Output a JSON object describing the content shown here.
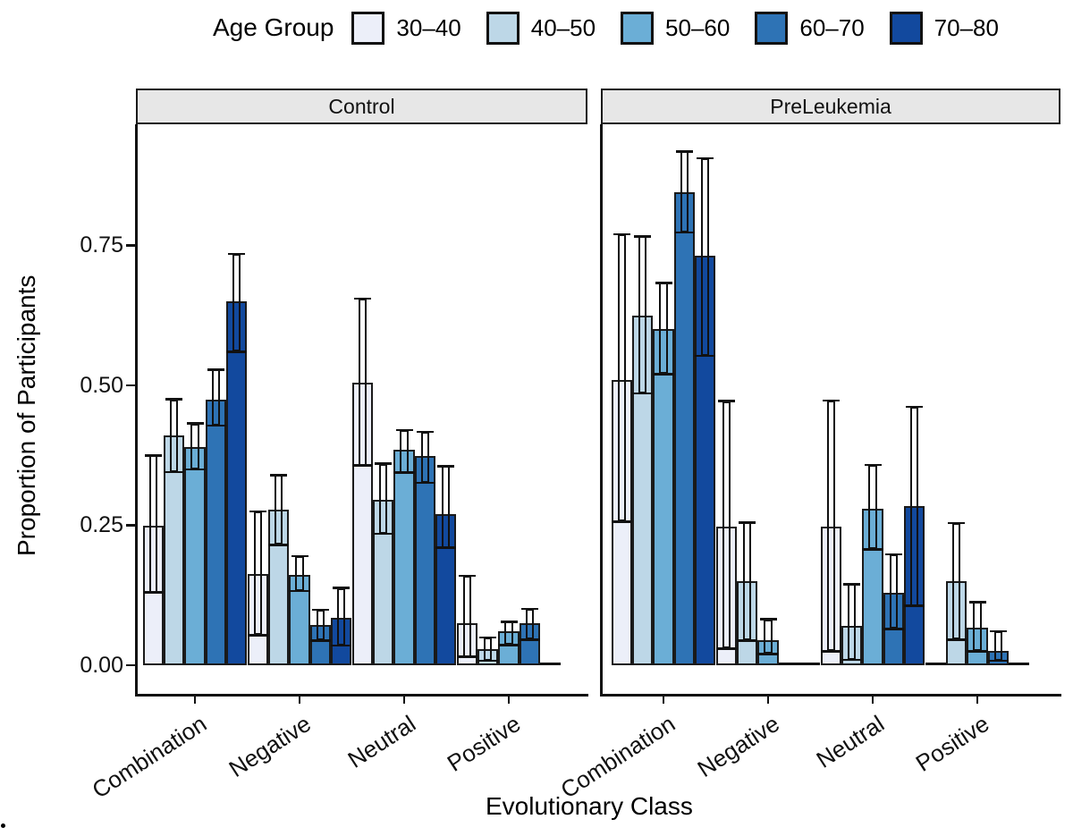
{
  "legend": {
    "title": "Age Group",
    "items": [
      {
        "label": "30–40",
        "color": "#eceff9"
      },
      {
        "label": "40–50",
        "color": "#bdd7e7"
      },
      {
        "label": "50–60",
        "color": "#6baed6"
      },
      {
        "label": "60–70",
        "color": "#2e73b5"
      },
      {
        "label": "70–80",
        "color": "#12499e"
      }
    ]
  },
  "facet_strips": [
    "Control",
    "PreLeukemia"
  ],
  "y_axis": {
    "title": "Proportion of Participants",
    "tick_labels": [
      "0.00",
      "0.25",
      "0.50",
      "0.75"
    ]
  },
  "x_axis": {
    "title": "Evolutionary Class"
  },
  "chart_data": {
    "type": "bar",
    "subtype": "dodged-faceted-with-errorbars",
    "title": "",
    "xlabel": "Evolutionary Class",
    "ylabel": "Proportion of Participants",
    "ylim": [
      0,
      0.95
    ],
    "yticks": [
      0,
      0.25,
      0.5,
      0.75
    ],
    "ytick_labels": [
      "0.00",
      "0.25",
      "0.50",
      "0.75"
    ],
    "grid": false,
    "legend_position": "top",
    "legend_title": "Age Group",
    "categories": [
      "Combination",
      "Negative",
      "Neutral",
      "Positive"
    ],
    "age_groups": [
      "30–40",
      "40–50",
      "50–60",
      "60–70",
      "70–80"
    ],
    "colors": [
      "#eceff9",
      "#bdd7e7",
      "#6baed6",
      "#2e73b5",
      "#12499e"
    ],
    "facets": [
      {
        "label": "Control",
        "groups": [
          {
            "category": "Combination",
            "bars": [
              {
                "age": "30–40",
                "value": 0.25,
                "ci_low": 0.13,
                "ci_high": 0.375
              },
              {
                "age": "40–50",
                "value": 0.41,
                "ci_low": 0.345,
                "ci_high": 0.475
              },
              {
                "age": "50–60",
                "value": 0.39,
                "ci_low": 0.35,
                "ci_high": 0.432
              },
              {
                "age": "60–70",
                "value": 0.475,
                "ci_low": 0.428,
                "ci_high": 0.528
              },
              {
                "age": "70–80",
                "value": 0.65,
                "ci_low": 0.56,
                "ci_high": 0.735
              }
            ]
          },
          {
            "category": "Negative",
            "bars": [
              {
                "age": "30–40",
                "value": 0.163,
                "ci_low": 0.054,
                "ci_high": 0.275
              },
              {
                "age": "40–50",
                "value": 0.278,
                "ci_low": 0.215,
                "ci_high": 0.34
              },
              {
                "age": "50–60",
                "value": 0.162,
                "ci_low": 0.133,
                "ci_high": 0.195
              },
              {
                "age": "60–70",
                "value": 0.072,
                "ci_low": 0.044,
                "ci_high": 0.099
              },
              {
                "age": "70–80",
                "value": 0.085,
                "ci_low": 0.035,
                "ci_high": 0.138
              }
            ]
          },
          {
            "category": "Neutral",
            "bars": [
              {
                "age": "30–40",
                "value": 0.505,
                "ci_low": 0.357,
                "ci_high": 0.655
              },
              {
                "age": "40–50",
                "value": 0.295,
                "ci_low": 0.235,
                "ci_high": 0.36
              },
              {
                "age": "50–60",
                "value": 0.385,
                "ci_low": 0.344,
                "ci_high": 0.42
              },
              {
                "age": "60–70",
                "value": 0.374,
                "ci_low": 0.326,
                "ci_high": 0.417
              },
              {
                "age": "70–80",
                "value": 0.27,
                "ci_low": 0.21,
                "ci_high": 0.356
              }
            ]
          },
          {
            "category": "Positive",
            "bars": [
              {
                "age": "30–40",
                "value": 0.075,
                "ci_low": 0.015,
                "ci_high": 0.16
              },
              {
                "age": "40–50",
                "value": 0.028,
                "ci_low": 0.008,
                "ci_high": 0.05
              },
              {
                "age": "50–60",
                "value": 0.06,
                "ci_low": 0.036,
                "ci_high": 0.078
              },
              {
                "age": "60–70",
                "value": 0.075,
                "ci_low": 0.046,
                "ci_high": 0.101
              },
              {
                "age": "70–80",
                "value": 0,
                "ci_low": null,
                "ci_high": null
              }
            ]
          }
        ]
      },
      {
        "label": "PreLeukemia",
        "groups": [
          {
            "category": "Combination",
            "bars": [
              {
                "age": "30–40",
                "value": 0.51,
                "ci_low": 0.257,
                "ci_high": 0.77
              },
              {
                "age": "40–50",
                "value": 0.624,
                "ci_low": 0.486,
                "ci_high": 0.766
              },
              {
                "age": "50–60",
                "value": 0.6,
                "ci_low": 0.52,
                "ci_high": 0.683
              },
              {
                "age": "60–70",
                "value": 0.845,
                "ci_low": 0.773,
                "ci_high": 0.918
              },
              {
                "age": "70–80",
                "value": 0.732,
                "ci_low": 0.553,
                "ci_high": 0.906
              }
            ]
          },
          {
            "category": "Negative",
            "bars": [
              {
                "age": "30–40",
                "value": 0.248,
                "ci_low": 0.03,
                "ci_high": 0.472
              },
              {
                "age": "40–50",
                "value": 0.15,
                "ci_low": 0.044,
                "ci_high": 0.255
              },
              {
                "age": "50–60",
                "value": 0.045,
                "ci_low": 0.02,
                "ci_high": 0.082
              },
              {
                "age": "60–70",
                "value": 0,
                "ci_low": null,
                "ci_high": null
              },
              {
                "age": "70–80",
                "value": 0,
                "ci_low": null,
                "ci_high": null
              }
            ]
          },
          {
            "category": "Neutral",
            "bars": [
              {
                "age": "30–40",
                "value": 0.248,
                "ci_low": 0.025,
                "ci_high": 0.473
              },
              {
                "age": "40–50",
                "value": 0.07,
                "ci_low": 0.01,
                "ci_high": 0.145
              },
              {
                "age": "50–60",
                "value": 0.28,
                "ci_low": 0.207,
                "ci_high": 0.358
              },
              {
                "age": "60–70",
                "value": 0.13,
                "ci_low": 0.065,
                "ci_high": 0.198
              },
              {
                "age": "70–80",
                "value": 0.285,
                "ci_low": 0.106,
                "ci_high": 0.462
              }
            ]
          },
          {
            "category": "Positive",
            "bars": [
              {
                "age": "30–40",
                "value": 0,
                "ci_low": null,
                "ci_high": null
              },
              {
                "age": "40–50",
                "value": 0.15,
                "ci_low": 0.046,
                "ci_high": 0.254
              },
              {
                "age": "50–60",
                "value": 0.067,
                "ci_low": 0.025,
                "ci_high": 0.113
              },
              {
                "age": "60–70",
                "value": 0.025,
                "ci_low": 0.008,
                "ci_high": 0.061
              },
              {
                "age": "70–80",
                "value": 0,
                "ci_low": null,
                "ci_high": null
              }
            ]
          }
        ]
      }
    ]
  }
}
